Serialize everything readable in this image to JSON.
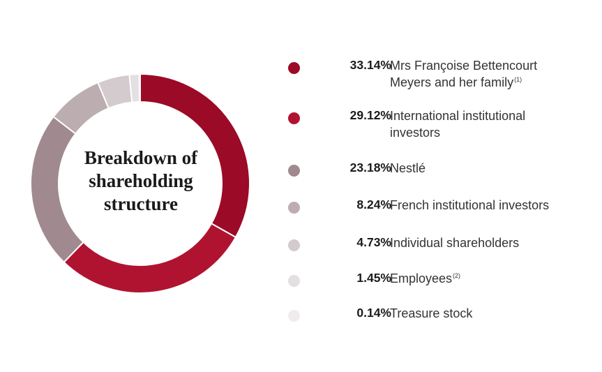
{
  "chart_data": {
    "type": "pie",
    "title": "Breakdown of shareholding structure",
    "title_lines": [
      "Breakdown of",
      "shareholding",
      "structure"
    ],
    "unit": "%",
    "series": [
      {
        "value": 33.14,
        "value_label": "33.14%",
        "label": "Mrs Françoise Bettencourt Meyers and her family",
        "label_lines": [
          "Mrs Françoise Bettencourt",
          "Meyers and her family"
        ],
        "note": "(1)",
        "color": "#9b0a26"
      },
      {
        "value": 29.12,
        "value_label": "29.12%",
        "label": "International institutional investors",
        "label_lines": [
          "International institutional",
          "investors"
        ],
        "note": "",
        "color": "#b01330"
      },
      {
        "value": 23.18,
        "value_label": "23.18%",
        "label": "Nestlé",
        "label_lines": [
          "Nestlé"
        ],
        "note": "",
        "color": "#a08a8f"
      },
      {
        "value": 8.24,
        "value_label": "8.24%",
        "label": "French institutional investors",
        "label_lines": [
          "French institutional investors"
        ],
        "note": "",
        "color": "#bcadb1"
      },
      {
        "value": 4.73,
        "value_label": "4.73%",
        "label": "Individual shareholders",
        "label_lines": [
          "Individual shareholders"
        ],
        "note": "",
        "color": "#d4cbce"
      },
      {
        "value": 1.45,
        "value_label": "1.45%",
        "label": "Employees",
        "label_lines": [
          "Employees"
        ],
        "note": "(2)",
        "color": "#e4dfe1"
      },
      {
        "value": 0.14,
        "value_label": "0.14%",
        "label": "Treasure stock",
        "label_lines": [
          "Treasure stock"
        ],
        "note": "",
        "color": "#f0ecee"
      }
    ]
  }
}
